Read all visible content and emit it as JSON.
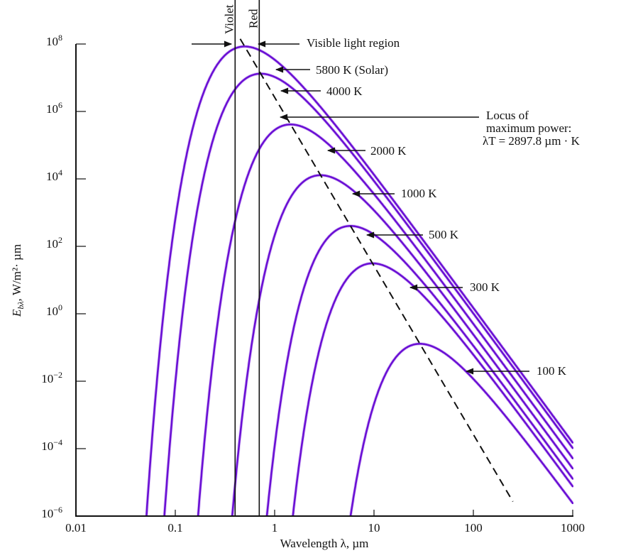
{
  "chart_data": {
    "type": "line",
    "xlabel": "Wavelength λ, µm",
    "ylabel": {
      "symbol": "E",
      "subscript": "bλ",
      "unit": ", W/m²· µm"
    },
    "x_scale": "log",
    "y_scale": "log",
    "xlim": [
      0.01,
      1000
    ],
    "ylim": [
      1e-06,
      100000000.0
    ],
    "x_ticks": [
      "0.01",
      "0.1",
      "1",
      "10",
      "100",
      "1000"
    ],
    "y_ticks": [
      {
        "base": "10",
        "exp": "8"
      },
      {
        "base": "10",
        "exp": "6"
      },
      {
        "base": "10",
        "exp": "4"
      },
      {
        "base": "10",
        "exp": "2"
      },
      {
        "base": "10",
        "exp": "0"
      },
      {
        "base": "10",
        "exp": "−2"
      },
      {
        "base": "10",
        "exp": "−4"
      },
      {
        "base": "10",
        "exp": "−6"
      }
    ],
    "grid": false,
    "series": [
      {
        "name": "5800 K (Solar)",
        "temperature_K": 5800
      },
      {
        "name": "4000 K",
        "temperature_K": 4000
      },
      {
        "name": "2000 K",
        "temperature_K": 2000
      },
      {
        "name": "1000 K",
        "temperature_K": 1000
      },
      {
        "name": "500 K",
        "temperature_K": 500
      },
      {
        "name": "300 K",
        "temperature_K": 300
      },
      {
        "name": "100 K",
        "temperature_K": 100
      }
    ],
    "locus": {
      "lines": [
        "Locus of",
        "maximum power:",
        "λT = 2897.8 µm · K"
      ],
      "lambda_T_um_K": 2897.8,
      "style": "dashed"
    },
    "visible_region": {
      "label": "Visible light region",
      "violet_label": "Violet",
      "red_label": "Red",
      "violet_um": 0.4,
      "red_um": 0.7
    },
    "curve_color": "#6a0fd4"
  }
}
